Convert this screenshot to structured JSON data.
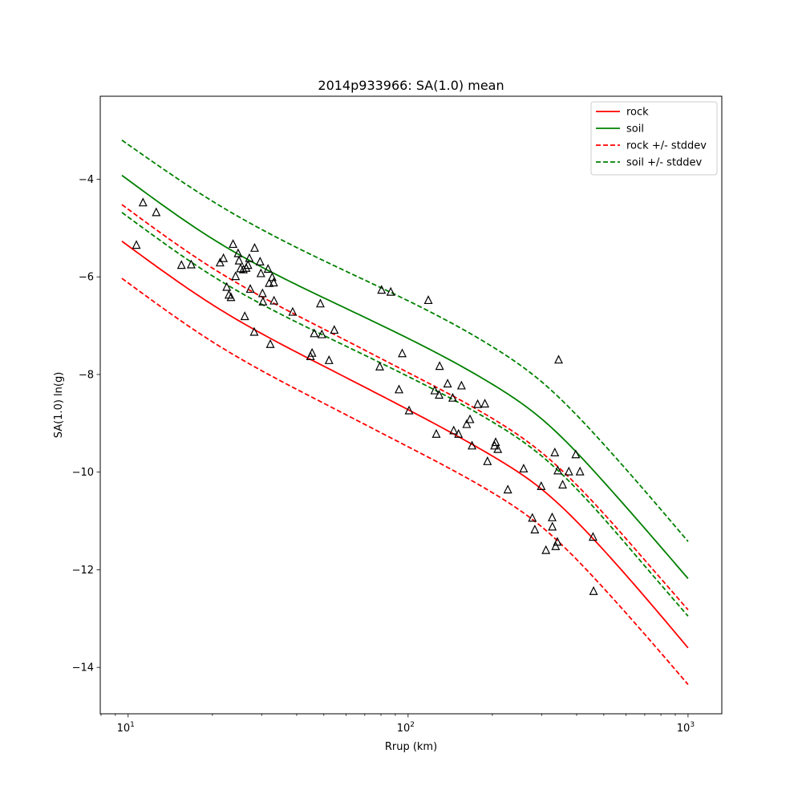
{
  "chart_data": {
    "type": "line",
    "title": "2014p933966: SA(1.0) mean",
    "xlabel": "Rrup (km)",
    "ylabel": "SA(1.0) ln(g)",
    "xscale": "log",
    "xlim": [
      7.95,
      1320
    ],
    "ylim": [
      -14.95,
      -2.3
    ],
    "xticks": [
      {
        "value": 10,
        "base": "10",
        "exp": "1"
      },
      {
        "value": 100,
        "base": "10",
        "exp": "2"
      },
      {
        "value": 1000,
        "base": "10",
        "exp": "3"
      }
    ],
    "yticks": [
      {
        "value": -14,
        "label": "−14"
      },
      {
        "value": -12,
        "label": "−12"
      },
      {
        "value": -10,
        "label": "−10"
      },
      {
        "value": -8,
        "label": "−8"
      },
      {
        "value": -6,
        "label": "−6"
      },
      {
        "value": -4,
        "label": "−4"
      }
    ],
    "grid": false,
    "legend_position": "top-right",
    "series": [
      {
        "name": "rock",
        "color": "#ff0000",
        "style": "solid",
        "x": [
          9.5,
          20,
          50,
          100,
          200,
          300,
          500,
          700,
          1000
        ],
        "y": [
          -5.27,
          -6.57,
          -7.83,
          -8.72,
          -9.67,
          -10.35,
          -11.6,
          -12.55,
          -13.6
        ]
      },
      {
        "name": "soil",
        "color": "#008000",
        "style": "solid",
        "x": [
          9.5,
          20,
          50,
          100,
          200,
          300,
          500,
          700,
          1000
        ],
        "y": [
          -3.92,
          -5.22,
          -6.43,
          -7.26,
          -8.2,
          -8.91,
          -10.2,
          -11.15,
          -12.18
        ]
      },
      {
        "name": "rock +/- stddev",
        "color": "#ff0000",
        "style": "dashed",
        "x": [
          9.5,
          20,
          50,
          100,
          200,
          300,
          500,
          700,
          1000
        ],
        "y": [
          -4.52,
          -5.82,
          -7.07,
          -7.96,
          -8.9,
          -9.6,
          -10.85,
          -11.8,
          -12.82
        ]
      },
      {
        "name": "",
        "color": "#ff0000",
        "style": "dashed",
        "x": [
          9.5,
          20,
          50,
          100,
          200,
          300,
          500,
          700,
          1000
        ],
        "y": [
          -6.03,
          -7.33,
          -8.59,
          -9.48,
          -10.42,
          -11.12,
          -12.38,
          -13.32,
          -14.35
        ]
      },
      {
        "name": "soil +/- stddev",
        "color": "#008000",
        "style": "dashed",
        "x": [
          9.5,
          20,
          50,
          100,
          200,
          300,
          500,
          700,
          1000
        ],
        "y": [
          -3.2,
          -4.45,
          -5.67,
          -6.49,
          -7.43,
          -8.15,
          -9.43,
          -10.38,
          -11.42
        ]
      },
      {
        "name": "",
        "color": "#008000",
        "style": "dashed",
        "x": [
          9.5,
          20,
          50,
          100,
          200,
          300,
          500,
          700,
          1000
        ],
        "y": [
          -4.68,
          -5.98,
          -7.2,
          -8.04,
          -8.97,
          -9.67,
          -10.95,
          -11.92,
          -12.95
        ]
      }
    ],
    "legend": [
      {
        "label": "rock",
        "color": "#ff0000",
        "style": "solid"
      },
      {
        "label": "soil",
        "color": "#008000",
        "style": "solid"
      },
      {
        "label": "rock +/- stddev",
        "color": "#ff0000",
        "style": "dashed"
      },
      {
        "label": "soil +/- stddev",
        "color": "#008000",
        "style": "dashed"
      }
    ],
    "observations": {
      "marker": "open-triangle",
      "color": "#000000",
      "points": [
        [
          10.7,
          -5.35
        ],
        [
          11.3,
          -4.48
        ],
        [
          12.6,
          -4.68
        ],
        [
          15.5,
          -5.76
        ],
        [
          16.8,
          -5.75
        ],
        [
          21.3,
          -5.71
        ],
        [
          21.9,
          -5.62
        ],
        [
          22.5,
          -6.21
        ],
        [
          22.9,
          -6.37
        ],
        [
          23.3,
          -6.42
        ],
        [
          23.7,
          -5.33
        ],
        [
          24.2,
          -5.99
        ],
        [
          24.7,
          -5.52
        ],
        [
          24.9,
          -5.67
        ],
        [
          25.2,
          -5.83
        ],
        [
          25.8,
          -5.85
        ],
        [
          26.1,
          -6.81
        ],
        [
          26.4,
          -5.82
        ],
        [
          26.8,
          -5.76
        ],
        [
          27.1,
          -5.62
        ],
        [
          27.3,
          -6.25
        ],
        [
          28.2,
          -7.13
        ],
        [
          28.3,
          -5.41
        ],
        [
          29.6,
          -5.69
        ],
        [
          29.8,
          -5.93
        ],
        [
          30.2,
          -6.34
        ],
        [
          30.3,
          -6.51
        ],
        [
          31.6,
          -5.84
        ],
        [
          31.9,
          -6.13
        ],
        [
          32.2,
          -7.38
        ],
        [
          32.7,
          -6.01
        ],
        [
          33.1,
          -6.12
        ],
        [
          33.2,
          -6.49
        ],
        [
          38.7,
          -6.72
        ],
        [
          44.8,
          -7.63
        ],
        [
          45.4,
          -7.56
        ],
        [
          46.2,
          -7.16
        ],
        [
          48.6,
          -6.55
        ],
        [
          49.2,
          -7.18
        ],
        [
          52.2,
          -7.71
        ],
        [
          54.5,
          -7.09
        ],
        [
          79.2,
          -7.84
        ],
        [
          80.4,
          -6.27
        ],
        [
          86.7,
          -6.31
        ],
        [
          92.8,
          -8.31
        ],
        [
          95.3,
          -7.57
        ],
        [
          100.8,
          -8.74
        ],
        [
          118.1,
          -6.48
        ],
        [
          124.5,
          -8.33
        ],
        [
          126.1,
          -9.22
        ],
        [
          129.1,
          -8.42
        ],
        [
          129.6,
          -7.83
        ],
        [
          138.4,
          -8.19
        ],
        [
          144.3,
          -8.48
        ],
        [
          145.5,
          -9.15
        ],
        [
          151.4,
          -9.22
        ],
        [
          155.1,
          -8.23
        ],
        [
          161.9,
          -9.02
        ],
        [
          166.4,
          -8.92
        ],
        [
          169.2,
          -9.46
        ],
        [
          177.2,
          -8.61
        ],
        [
          188.1,
          -8.6
        ],
        [
          192.1,
          -9.78
        ],
        [
          203.6,
          -9.46
        ],
        [
          205.5,
          -9.39
        ],
        [
          209.1,
          -9.53
        ],
        [
          227.1,
          -10.36
        ],
        [
          258.7,
          -9.93
        ],
        [
          277.9,
          -10.94
        ],
        [
          283.6,
          -11.18
        ],
        [
          298.9,
          -10.29
        ],
        [
          310.7,
          -11.6
        ],
        [
          327.1,
          -10.93
        ],
        [
          327.6,
          -11.12
        ],
        [
          334.2,
          -9.6
        ],
        [
          336.6,
          -11.52
        ],
        [
          341.3,
          -11.43
        ],
        [
          342.7,
          -9.97
        ],
        [
          344.9,
          -7.7
        ],
        [
          356.5,
          -10.26
        ],
        [
          375.1,
          -9.99
        ],
        [
          397.1,
          -9.64
        ],
        [
          411.2,
          -9.99
        ],
        [
          457.6,
          -11.33
        ],
        [
          459.7,
          -12.44
        ]
      ]
    }
  }
}
